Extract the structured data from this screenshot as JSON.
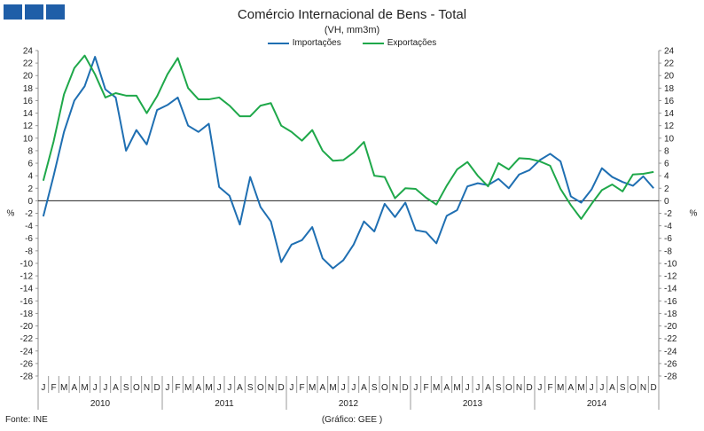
{
  "header": {
    "title": "Comércio Internacional de Bens - Total",
    "subtitle": "(VH, mm3m)"
  },
  "footer": {
    "source": "Fonte: INE",
    "credit": "(Gráfico: GEE )"
  },
  "colors": {
    "importacoes": "#1f6fb2",
    "exportacoes": "#1fa84a",
    "logo": "#1f5ea8"
  },
  "chart_data": {
    "type": "line",
    "yunit": "%",
    "ylim": [
      -28,
      24
    ],
    "ytick_step": 2,
    "grid": false,
    "legend_position": "top",
    "month_labels": [
      "J",
      "F",
      "M",
      "A",
      "M",
      "J",
      "J",
      "A",
      "S",
      "O",
      "N",
      "D"
    ],
    "years": [
      "2010",
      "2011",
      "2012",
      "2013",
      "2014"
    ],
    "series": [
      {
        "name": "Importações",
        "color": "#1f6fb2",
        "values": [
          -2.5,
          4,
          11,
          16,
          18.3,
          23,
          17.8,
          16.5,
          8,
          11.3,
          9,
          14.5,
          15.3,
          16.5,
          12,
          11,
          12.3,
          2.2,
          0.8,
          -3.8,
          3.8,
          -1,
          -3.3,
          -9.8,
          -7,
          -6.3,
          -4.2,
          -9.2,
          -10.8,
          -9.5,
          -7,
          -3.3,
          -4.9,
          -0.5,
          -2.6,
          -0.3,
          -4.7,
          -5,
          -6.8,
          -2.4,
          -1.5,
          2.3,
          2.8,
          2.5,
          3.5,
          2,
          4.2,
          4.9,
          6.5,
          7.5,
          6.3,
          0.7,
          -0.3,
          1.8,
          5.2,
          3.8,
          3,
          2.4,
          3.9,
          2
        ]
      },
      {
        "name": "Exportações",
        "color": "#1fa84a",
        "values": [
          3.2,
          9.5,
          17,
          21.2,
          23.2,
          20.2,
          16.5,
          17.2,
          16.8,
          16.8,
          14,
          16.7,
          20.2,
          22.8,
          18,
          16.2,
          16.2,
          16.5,
          15.2,
          13.5,
          13.5,
          15.2,
          15.6,
          12,
          11,
          9.6,
          11.3,
          8,
          6.4,
          6.5,
          7.7,
          9.4,
          4,
          3.8,
          0.4,
          2,
          1.9,
          0.5,
          -0.6,
          2.4,
          5,
          6.2,
          4,
          2.3,
          6,
          5,
          6.8,
          6.7,
          6.3,
          5.6,
          1.9,
          -0.7,
          -2.9,
          -0.5,
          1.7,
          2.6,
          1.5,
          4.2,
          4.3,
          4.6
        ]
      }
    ]
  }
}
